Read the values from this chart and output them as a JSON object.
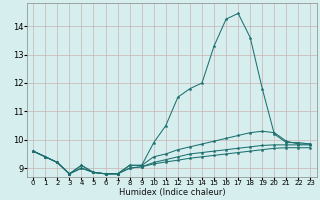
{
  "title": "",
  "xlabel": "Humidex (Indice chaleur)",
  "background_color": "#d6eeee",
  "grid_color": "#c8b4b4",
  "line_color": "#1e7070",
  "xlim": [
    -0.5,
    23.5
  ],
  "ylim": [
    8.7,
    14.8
  ],
  "xticks": [
    0,
    1,
    2,
    3,
    4,
    5,
    6,
    7,
    8,
    9,
    10,
    11,
    12,
    13,
    14,
    15,
    16,
    17,
    18,
    19,
    20,
    21,
    22,
    23
  ],
  "yticks": [
    9,
    10,
    11,
    12,
    13,
    14
  ],
  "series": [
    {
      "x": [
        0,
        1,
        2,
        3,
        4,
        5,
        6,
        7,
        8,
        9,
        10,
        11,
        12,
        13,
        14,
        15,
        16,
        17,
        18,
        19,
        20,
        21,
        22,
        23
      ],
      "y": [
        9.6,
        9.4,
        9.2,
        8.8,
        9.1,
        8.85,
        8.8,
        8.8,
        9.1,
        9.1,
        9.9,
        10.5,
        11.5,
        11.8,
        12.0,
        13.3,
        14.25,
        14.45,
        13.6,
        11.8,
        10.2,
        9.9,
        9.9,
        9.85
      ]
    },
    {
      "x": [
        0,
        1,
        2,
        3,
        4,
        5,
        6,
        7,
        8,
        9,
        10,
        11,
        12,
        13,
        14,
        15,
        16,
        17,
        18,
        19,
        20,
        21,
        22,
        23
      ],
      "y": [
        9.6,
        9.4,
        9.2,
        8.8,
        9.1,
        8.85,
        8.8,
        8.8,
        9.1,
        9.1,
        9.4,
        9.5,
        9.65,
        9.75,
        9.85,
        9.95,
        10.05,
        10.15,
        10.25,
        10.3,
        10.25,
        9.95,
        9.85,
        9.85
      ]
    },
    {
      "x": [
        0,
        1,
        2,
        3,
        4,
        5,
        6,
        7,
        8,
        9,
        10,
        11,
        12,
        13,
        14,
        15,
        16,
        17,
        18,
        19,
        20,
        21,
        22,
        23
      ],
      "y": [
        9.6,
        9.4,
        9.2,
        8.8,
        9.0,
        8.85,
        8.8,
        8.8,
        9.0,
        9.05,
        9.2,
        9.3,
        9.4,
        9.5,
        9.55,
        9.6,
        9.65,
        9.7,
        9.75,
        9.8,
        9.82,
        9.82,
        9.82,
        9.82
      ]
    },
    {
      "x": [
        0,
        1,
        2,
        3,
        4,
        5,
        6,
        7,
        8,
        9,
        10,
        11,
        12,
        13,
        14,
        15,
        16,
        17,
        18,
        19,
        20,
        21,
        22,
        23
      ],
      "y": [
        9.6,
        9.4,
        9.2,
        8.8,
        9.0,
        8.85,
        8.8,
        8.8,
        9.0,
        9.05,
        9.15,
        9.22,
        9.28,
        9.35,
        9.4,
        9.45,
        9.5,
        9.55,
        9.6,
        9.65,
        9.7,
        9.72,
        9.72,
        9.72
      ]
    }
  ]
}
